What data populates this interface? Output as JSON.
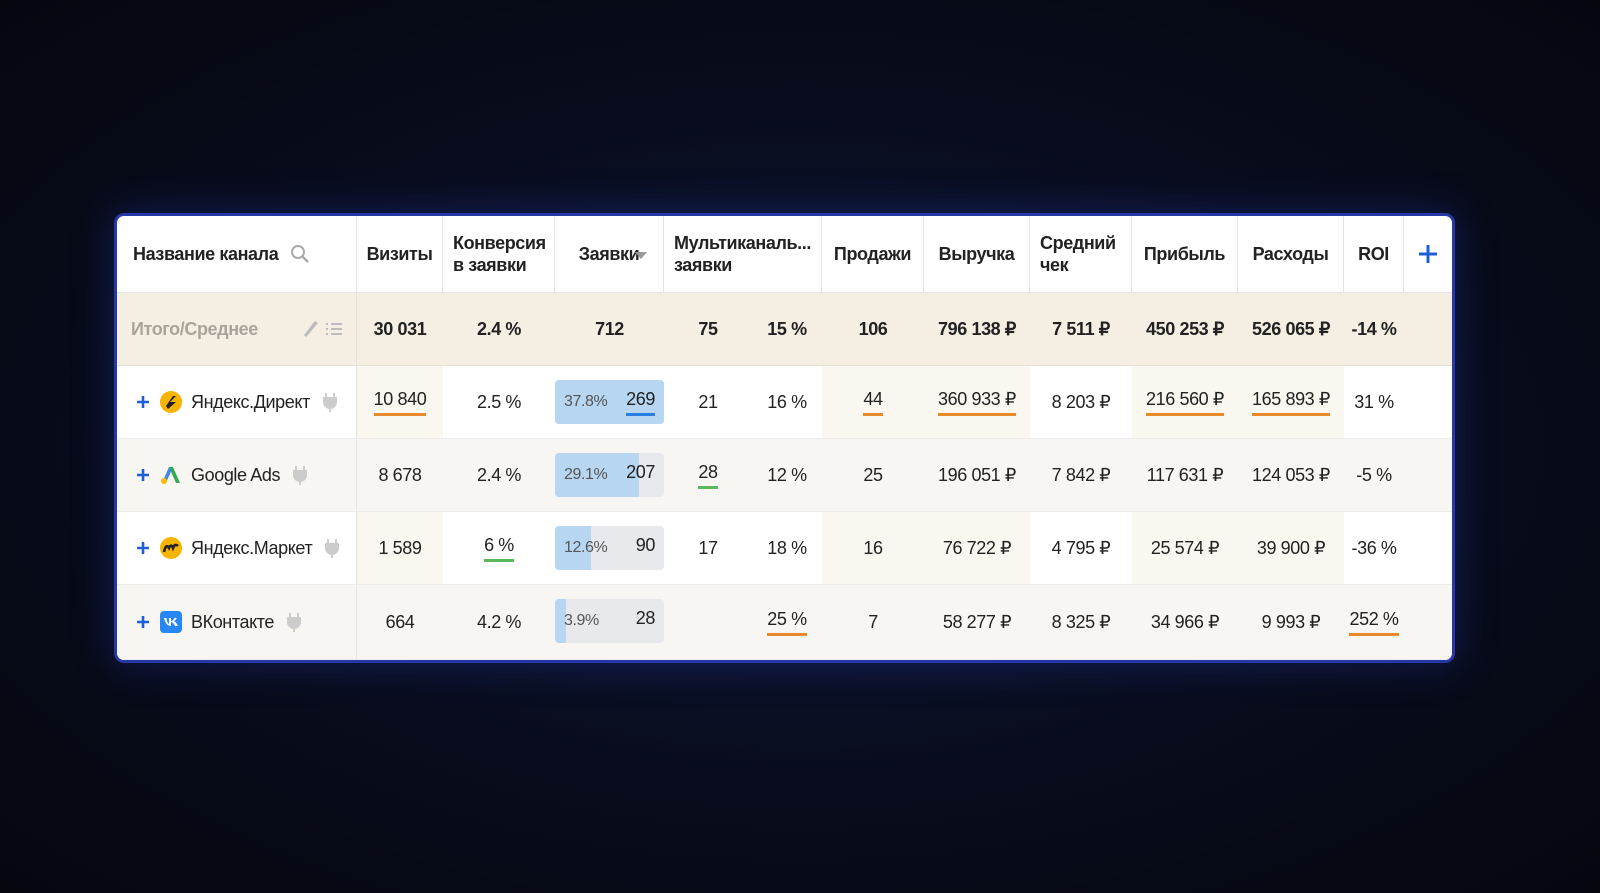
{
  "table": {
    "header": [
      {
        "lines": [
          "Название канала"
        ]
      },
      {
        "lines": [
          "Визиты"
        ]
      },
      {
        "lines": [
          "Конверсия",
          "в заявки"
        ]
      },
      {
        "lines": [
          "Заявки"
        ]
      },
      {
        "lines": [
          "Мультиканаль...",
          "заявки"
        ]
      },
      {
        "lines": [
          "Продажи"
        ]
      },
      {
        "lines": [
          "Выручка"
        ]
      },
      {
        "lines": [
          "Средний",
          "чек"
        ]
      },
      {
        "lines": [
          "Прибыль"
        ]
      },
      {
        "lines": [
          "Расходы"
        ]
      },
      {
        "lines": [
          "ROI"
        ]
      }
    ],
    "total": {
      "name": "Итого/Среднее",
      "cells": [
        "30 031",
        "2.4 %",
        "712",
        "75",
        "15 %",
        "106",
        "796 138 ₽",
        "7 511 ₽",
        "450 253 ₽",
        "526 065 ₽",
        "-14 %"
      ]
    },
    "rows": [
      {
        "name": "Яндекс.Директ",
        "cells": [
          {
            "text": "10 840",
            "underline": "#e8892b"
          },
          "2.5 %",
          {
            "share": {
              "value": 37.8,
              "label": "37.8%"
            },
            "text": "269",
            "underline": "#2a7de1"
          },
          "21",
          "16 %",
          {
            "text": "44",
            "underline": "#e8892b"
          },
          {
            "text": "360 933 ₽",
            "underline": "#e8892b"
          },
          "8 203 ₽",
          {
            "text": "216 560 ₽",
            "underline": "#e8892b"
          },
          {
            "text": "165 893 ₽",
            "underline": "#e8892b"
          },
          "31 %"
        ]
      },
      {
        "name": "Google Ads",
        "cells": [
          "8 678",
          "2.4 %",
          {
            "share": {
              "value": 29.1,
              "label": "29.1%"
            },
            "text": "207"
          },
          {
            "text": "28",
            "underline": "#5cb85c"
          },
          "12 %",
          "25",
          "196 051 ₽",
          "7 842 ₽",
          "117 631 ₽",
          "124 053 ₽",
          "-5 %"
        ]
      },
      {
        "name": "Яндекс.Маркет",
        "cells": [
          "1 589",
          {
            "text": "6 %",
            "underline": "#5cb85c"
          },
          {
            "share": {
              "value": 12.6,
              "label": "12.6%"
            },
            "text": "90"
          },
          "17",
          "18 %",
          "16",
          "76 722 ₽",
          "4 795 ₽",
          "25 574 ₽",
          "39 900 ₽",
          "-36 %"
        ]
      },
      {
        "name": "ВКонтакте",
        "cells": [
          "664",
          "4.2 %",
          {
            "share": {
              "value": 3.9,
              "label": "3.9%"
            },
            "text": "28"
          },
          null,
          {
            "text": "25 %",
            "underline": "#e8892b"
          },
          "7",
          "58 277 ₽",
          "8 325 ₽",
          "34 966 ₽",
          "9 993 ₽",
          {
            "text": "252 %",
            "underline": "#e8892b"
          }
        ]
      }
    ]
  }
}
